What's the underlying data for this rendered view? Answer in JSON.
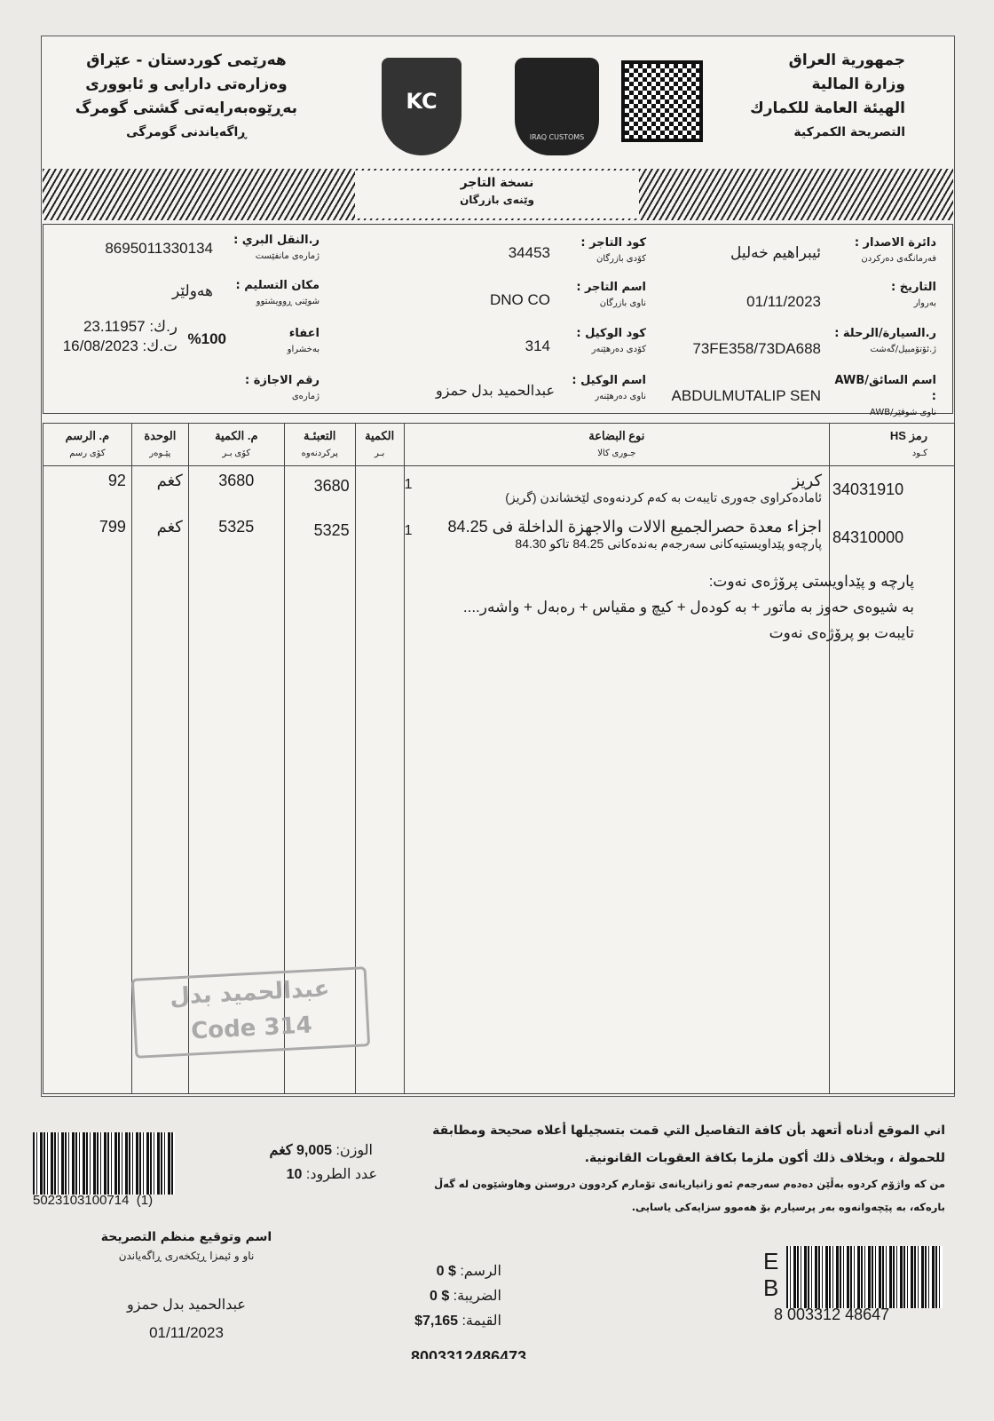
{
  "header": {
    "right_lines": [
      "جمهورية العراق",
      "وزارة المالية",
      "الهيئة العامة للكمارك",
      "التصريحة الكمركية"
    ],
    "left_lines": [
      "هەرێمی کوردستان - عێراق",
      "وەزارەتی دارایی و ئابووری",
      "بەڕێوەبەرایەتی گشتی گومرگ",
      "ڕاگەیاندنی گومرگی"
    ],
    "logo_left_text": "KC",
    "logo_right_text": "IRAQ CUSTOMS",
    "copy_title": "نسخة التاجر",
    "copy_subtitle": "وێنەی بازرگان"
  },
  "info": {
    "issuing_office": {
      "label": "دائرة الاصدار",
      "sublabel": "فەرمانگەی دەرکردن",
      "value": "ئیبراهیم خەلیل"
    },
    "date": {
      "label": "التاريخ",
      "sublabel": "بەروار",
      "value": "01/11/2023"
    },
    "vehicle": {
      "label": "ر.السيارة/الرحلة",
      "sublabel": "ژ.ئۆتۆمبیل/گەشت",
      "value": "73FE358/73DA688"
    },
    "driver": {
      "label": "اسم السائق/AWB",
      "sublabel": "ناوی شوفێر/AWB",
      "value": "ABDULMUTALIP SEN"
    },
    "merchant_code": {
      "label": "كود التاجر",
      "sublabel": "كۆدی بازرگان",
      "value": "34453"
    },
    "merchant_name": {
      "label": "اسم التاجر",
      "sublabel": "ناوی بازرگان",
      "value": "DNO CO"
    },
    "agent_code": {
      "label": "كود الوكيل",
      "sublabel": "كۆدی دەرهێنەر",
      "value": "314"
    },
    "agent_name": {
      "label": "اسم الوكيل",
      "sublabel": "ناوی دەرهێنەر",
      "value": "عبدالحميد بدل حمزو"
    },
    "land_transport": {
      "label": "ر.النقل البري",
      "sublabel": "ژمارەی مانفێست",
      "value": "8695011330134"
    },
    "delivery_place": {
      "label": "مكان التسليم",
      "sublabel": "شوێنی ڕوویشتوو",
      "value": "هەولێر"
    },
    "exemption": {
      "label": "اعفاء",
      "sublabel": "بەخشراو",
      "value": "%100",
      "ref_no": "ر.ك: 23.11957",
      "ref_date": "ت.ك: 16/08/2023"
    },
    "permit_no": {
      "label": "رقم الاجازة",
      "sublabel": "ژمارەی"
    }
  },
  "table": {
    "headers": [
      {
        "ar": "رمز HS",
        "ku": "كـود"
      },
      {
        "ar": "نوع البضاعة",
        "ku": "جـوری كالا"
      },
      {
        "ar": "الكمية",
        "ku": "بـر"
      },
      {
        "ar": "التعبئـة",
        "ku": "پركردنەوە"
      },
      {
        "ar": "م. الكمية",
        "ku": "كۆی بـر"
      },
      {
        "ar": "الوحدة",
        "ku": "پێـوەر"
      },
      {
        "ar": "م. الرسم",
        "ku": "كۆی رسم"
      }
    ],
    "rows": [
      {
        "hs": "34031910",
        "desc_main": "كريز",
        "desc_sub": "ئامادەكراوی جەوری تایبەت بە كەم كردنەوەی لێخشاندن (گریز)",
        "qty": "1",
        "packing": "3680",
        "total_qty": "3680",
        "unit": "كغم",
        "total_fee": "92"
      },
      {
        "hs": "84310000",
        "desc_main": "اجزاء معدة حصرالجميع الالات والاجهزة الداخلة فى 84.25",
        "desc_sub": "پارچەو پێداویستیەكانی سەرجەم بەندەكانی 84.25 تاكو 84.30",
        "qty": "1",
        "packing": "5325",
        "total_qty": "5325",
        "unit": "كغم",
        "total_fee": "799"
      }
    ],
    "note_lines": [
      "پارچە و پێداویستی پرۆژەی نەوت:",
      "بە شیوەی حەوز بە ماتور + بە كودەل + كیچ و مقیاس + رەبەل + واشەر....",
      "تایبەت بو پرۆژەی نەوت"
    ],
    "stamp_lines": [
      "عبدالحميد بدل",
      "Code 314"
    ]
  },
  "footer": {
    "declaration_ar": "اني الموقع أدناه أتعهد بأن كافة التفاصيل التي قمت بتسجيلها أعلاه صحيحة ومطابقة للحمولة ، وبخلاف ذلك أكون ملزما بكافة العقوبات القانونية.",
    "declaration_ku": "من كه واژۆم كردوه بەڵێن دەدەم سەرجەم ئەو زانیاریانەی تۆمارم كردوون دروستن وهاوشێوەن لە گەڵ بارەكە، بە پێچەوانەوە بەر پرسیارم بۆ هەموو سزایەكی یاسایی.",
    "weight_label": "الوزن:",
    "weight_value": "9,005 كغم",
    "packages_label": "عدد الطرود:",
    "packages_value": "10",
    "barcode_left_number": "5023103100714  (1)",
    "signer_title_ar": "اسم وتوقيع منظم التصريحة",
    "signer_title_ku": "ناو و ئیمزا ڕێكخەری ڕاگەیاندن",
    "signer_name": "عبدالحميد بدل حمزو",
    "signer_date": "01/11/2023",
    "fee_label": "الرسم:",
    "fee_value": "0 $",
    "tax_label": "الضريبة:",
    "tax_value": "0 $",
    "value_label": "القيمة:",
    "value_value": "$7,165",
    "barcode_right_letters": [
      "E",
      "B"
    ],
    "barcode_right_number": "8 003312 48647",
    "bottom_number": "8003312486473"
  }
}
